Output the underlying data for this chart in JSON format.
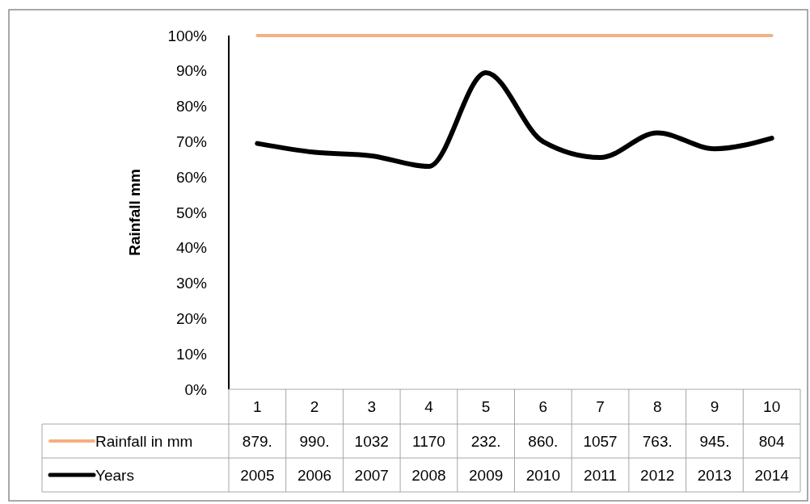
{
  "chart_data": {
    "type": "line",
    "ylabel": "Rainfall mm",
    "categories": [
      "1",
      "2",
      "3",
      "4",
      "5",
      "6",
      "7",
      "8",
      "9",
      "10"
    ],
    "series": [
      {
        "name": "Rainfall in mm",
        "color": "#f4b183",
        "values": [
          100,
          100,
          100,
          100,
          100,
          100,
          100,
          100,
          100,
          100
        ]
      },
      {
        "name": "Years",
        "color": "#000000",
        "values": [
          69.5,
          67,
          66,
          63,
          89.5,
          70,
          65.5,
          72.5,
          68,
          71
        ]
      }
    ],
    "annotations": [
      "879.",
      "990.",
      "1032",
      "1170",
      "232.",
      "860.",
      "1057",
      "763.",
      "945.",
      "804",
      "2005",
      "2006",
      "2007",
      "2008",
      "2009",
      "2010",
      "2011",
      "2012",
      "2013",
      "2014"
    ],
    "ylim": [
      0,
      100
    ],
    "yticks": [
      {
        "value": 0,
        "label": "0%"
      },
      {
        "value": 10,
        "label": "10%"
      },
      {
        "value": 20,
        "label": "20%"
      },
      {
        "value": 30,
        "label": "30%"
      },
      {
        "value": 40,
        "label": "40%"
      },
      {
        "value": 50,
        "label": "50%"
      },
      {
        "value": 60,
        "label": "60%"
      },
      {
        "value": 70,
        "label": "70%"
      },
      {
        "value": 80,
        "label": "80%"
      },
      {
        "value": 90,
        "label": "90%"
      },
      {
        "value": 100,
        "label": "100%"
      }
    ],
    "grid": false,
    "legend": "bottom",
    "marker": "none",
    "line_style": "solid"
  }
}
